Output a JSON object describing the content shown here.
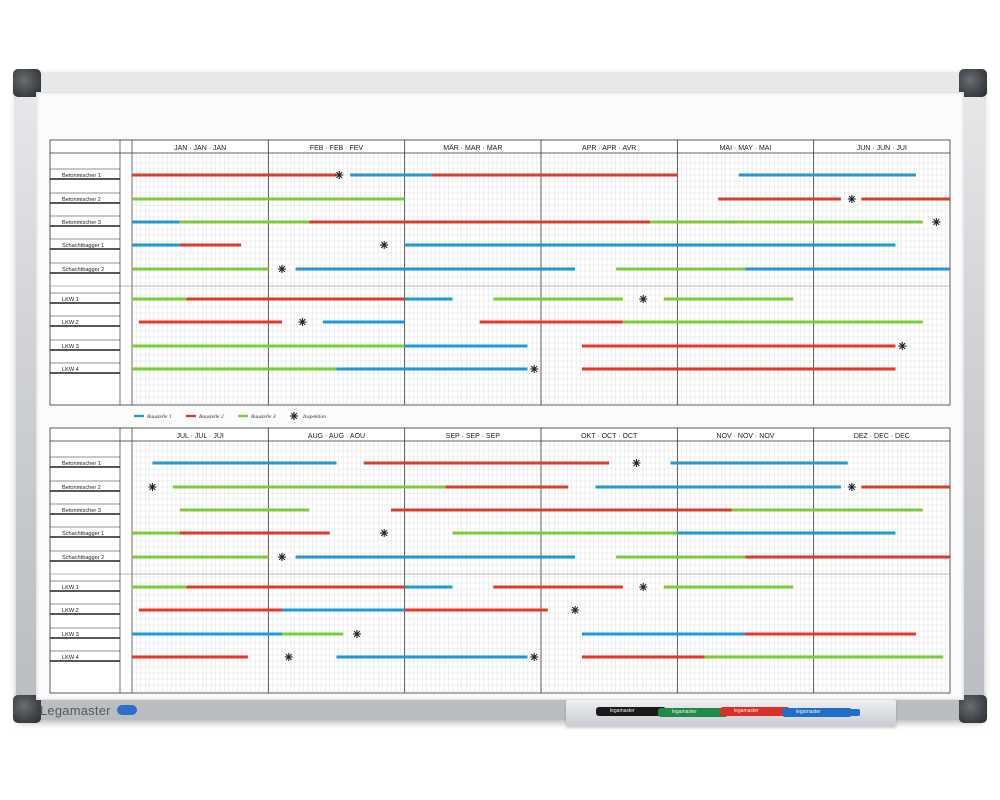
{
  "brand": {
    "name": "Legamaster"
  },
  "colors": {
    "blue": "#1f9ad6",
    "red": "#e23a2a",
    "green": "#7ccc38",
    "grid": "#b9bcc0",
    "ink": "#222222"
  },
  "legend": [
    {
      "label": "Baustelle 1",
      "color": "blue"
    },
    {
      "label": "Baustelle 2",
      "color": "red"
    },
    {
      "label": "Baustelle 3",
      "color": "green"
    },
    {
      "label": "Inspektion",
      "color": "star"
    }
  ],
  "panels": [
    {
      "months": [
        "JAN · JAN · JAN",
        "FEB · FEB · FEV",
        "MÄR · MAR · MAR",
        "APR · APR · AVR",
        "MAI · MAY · MAI",
        "JUN · JUN · JUI"
      ],
      "rows": [
        {
          "label": "Betonmischer 1",
          "bars": [
            [
              "red",
              0,
              1.5
            ],
            [
              "blue",
              1.6,
              2.2
            ],
            [
              "red",
              2.2,
              4.0
            ],
            [
              "blue",
              4.45,
              5.75
            ]
          ],
          "stars": [
            1.52
          ]
        },
        {
          "label": "Betonmischer 2",
          "bars": [
            [
              "green",
              0,
              2.0
            ],
            [
              "red",
              4.3,
              5.2
            ],
            [
              "red",
              5.35,
              6.0
            ]
          ],
          "stars": [
            5.28
          ]
        },
        {
          "label": "Betonmischer 3",
          "bars": [
            [
              "blue",
              0,
              0.35
            ],
            [
              "green",
              0.35,
              1.3
            ],
            [
              "red",
              1.3,
              3.8
            ],
            [
              "green",
              3.8,
              5.8
            ]
          ],
          "stars": [
            5.9
          ]
        },
        {
          "label": "Schachtbagger 1",
          "bars": [
            [
              "blue",
              0,
              0.35
            ],
            [
              "red",
              0.35,
              0.8
            ],
            [
              "blue",
              2.0,
              5.6
            ]
          ],
          "stars": [
            1.85
          ]
        },
        {
          "label": "Schachtbagger 2",
          "bars": [
            [
              "green",
              0,
              1.0
            ],
            [
              "blue",
              1.2,
              3.25
            ],
            [
              "green",
              3.55,
              4.5
            ],
            [
              "blue",
              4.5,
              6.0
            ]
          ],
          "stars": [
            1.1
          ]
        },
        {
          "label": "LKW 1",
          "bars": [
            [
              "green",
              0,
              0.4
            ],
            [
              "red",
              0.4,
              2.0
            ],
            [
              "blue",
              2.0,
              2.35
            ],
            [
              "green",
              2.65,
              3.6
            ],
            [
              "green",
              3.9,
              4.85
            ]
          ],
          "stars": [
            3.75
          ]
        },
        {
          "label": "LKW 2",
          "bars": [
            [
              "red",
              0.05,
              1.1
            ],
            [
              "blue",
              1.4,
              2.0
            ],
            [
              "red",
              2.55,
              3.6
            ],
            [
              "green",
              3.6,
              5.8
            ]
          ],
          "stars": [
            1.25
          ]
        },
        {
          "label": "LKW 3",
          "bars": [
            [
              "green",
              0,
              2.0
            ],
            [
              "blue",
              2.0,
              2.9
            ],
            [
              "red",
              3.3,
              5.6
            ]
          ],
          "stars": [
            5.65
          ]
        },
        {
          "label": "LKW 4",
          "bars": [
            [
              "green",
              0,
              1.5
            ],
            [
              "blue",
              1.5,
              2.9
            ],
            [
              "red",
              3.3,
              5.6
            ]
          ],
          "stars": [
            2.95
          ]
        }
      ]
    },
    {
      "months": [
        "JUL · JUL · JUI",
        "AUG · AUG · AOU",
        "SEP · SEP · SEP",
        "OKT · OCT · OCT",
        "NOV · NOV · NOV",
        "DEZ · DEC · DEC"
      ],
      "rows": [
        {
          "label": "Betonmischer 1",
          "bars": [
            [
              "blue",
              0.15,
              1.5
            ],
            [
              "red",
              1.7,
              3.5
            ],
            [
              "blue",
              3.95,
              5.25
            ]
          ],
          "stars": [
            3.7
          ]
        },
        {
          "label": "Betonmischer 2",
          "bars": [
            [
              "green",
              0.3,
              2.3
            ],
            [
              "red",
              2.3,
              3.2
            ],
            [
              "blue",
              3.4,
              5.2
            ],
            [
              "red",
              5.35,
              6.0
            ]
          ],
          "stars": [
            0.15,
            5.28
          ]
        },
        {
          "label": "Betonmischer 3",
          "bars": [
            [
              "green",
              0.35,
              1.3
            ],
            [
              "red",
              1.9,
              4.4
            ],
            [
              "green",
              4.4,
              5.8
            ]
          ],
          "stars": []
        },
        {
          "label": "Schachtbagger 1",
          "bars": [
            [
              "green",
              0,
              0.35
            ],
            [
              "red",
              0.35,
              1.45
            ],
            [
              "green",
              2.35,
              4.0
            ],
            [
              "blue",
              4.0,
              5.6
            ]
          ],
          "stars": [
            1.85
          ]
        },
        {
          "label": "Schachtbagger 2",
          "bars": [
            [
              "green",
              0,
              1.0
            ],
            [
              "blue",
              1.2,
              3.25
            ],
            [
              "green",
              3.55,
              4.5
            ],
            [
              "red",
              4.5,
              6.0
            ]
          ],
          "stars": [
            1.1
          ]
        },
        {
          "label": "LKW 1",
          "bars": [
            [
              "green",
              0,
              0.4
            ],
            [
              "red",
              0.4,
              2.0
            ],
            [
              "blue",
              2.0,
              2.35
            ],
            [
              "red",
              2.65,
              3.6
            ],
            [
              "green",
              3.9,
              4.85
            ]
          ],
          "stars": [
            3.75
          ]
        },
        {
          "label": "LKW 2",
          "bars": [
            [
              "red",
              0.05,
              1.1
            ],
            [
              "blue",
              1.1,
              2.0
            ],
            [
              "red",
              2.0,
              3.05
            ]
          ],
          "stars": [
            3.25
          ]
        },
        {
          "label": "LKW 3",
          "bars": [
            [
              "blue",
              0,
              1.1
            ],
            [
              "green",
              1.1,
              1.55
            ],
            [
              "blue",
              3.3,
              4.5
            ],
            [
              "red",
              4.5,
              5.75
            ]
          ],
          "stars": [
            1.65
          ]
        },
        {
          "label": "LKW 4",
          "bars": [
            [
              "red",
              0,
              0.85
            ],
            [
              "blue",
              1.5,
              2.9
            ],
            [
              "red",
              3.3,
              4.2
            ],
            [
              "green",
              4.2,
              5.95
            ]
          ],
          "stars": [
            1.15,
            2.95
          ]
        }
      ]
    }
  ],
  "markers": [
    {
      "color": "#1a1a1a",
      "label": "legamaster"
    },
    {
      "color": "#1f8a4c",
      "label": "legamaster"
    },
    {
      "color": "#d8302a",
      "label": "legamaster"
    },
    {
      "color": "#1f6fc9",
      "label": "legamaster"
    }
  ]
}
